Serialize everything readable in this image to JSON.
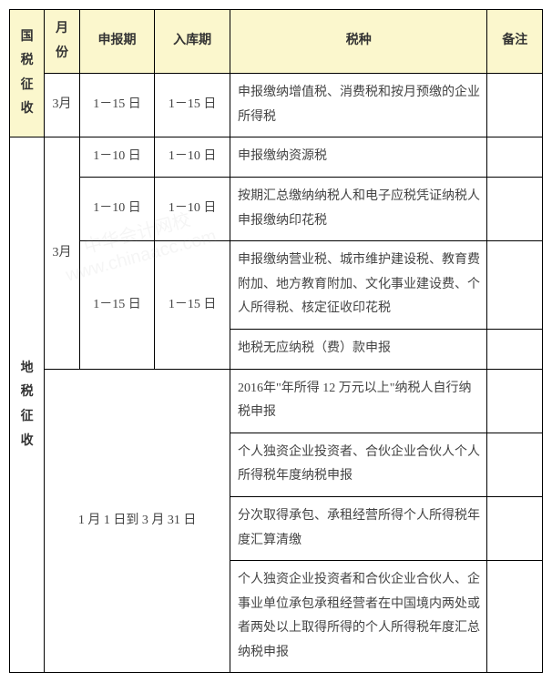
{
  "headers": {
    "month": "月份",
    "declare_period": "申报期",
    "storage_period": "入库期",
    "tax_type": "税种",
    "remark": "备注"
  },
  "categories": {
    "national": "国税征收",
    "local": "地税征收"
  },
  "national_rows": {
    "month": "3月",
    "r1": {
      "declare": "1－15 日",
      "storage": "1－15 日",
      "desc": "申报缴纳增值税、消费税和按月预缴的企业所得税"
    }
  },
  "local_rows": {
    "month": "3月",
    "r1": {
      "declare": "1－10 日",
      "storage": "1－10 日",
      "desc": "申报缴纳资源税"
    },
    "r2": {
      "declare": "1－10 日",
      "storage": "1－10 日",
      "desc": "按期汇总缴纳纳税人和电子应税凭证纳税人申报缴纳印花税"
    },
    "r3": {
      "declare": "1－15 日",
      "storage": "1－15 日",
      "desc": "申报缴纳营业税、城市维护建设税、教育费附加、地方教育附加、文化事业建设费、个人所得税、核定征收印花税"
    },
    "r4": {
      "desc": "地税无应纳税（费）款申报"
    },
    "full_period": "1 月 1 日到 3 月 31 日",
    "r5": {
      "desc": "2016年\"年所得 12 万元以上\"纳税人自行纳税申报"
    },
    "r6": {
      "desc": "个人独资企业投资者、合伙企业合伙人个人所得税年度纳税申报"
    },
    "r7": {
      "desc": "分次取得承包、承租经营所得个人所得税年度汇算清缴"
    },
    "r8": {
      "desc": "个人独资企业投资者和合伙企业合伙人、企事业单位承包承租经营者在中国境内两处或者两处以上取得所得的个人所得税年度汇总纳税申报"
    }
  },
  "watermark": {
    "text1": "中华会计网校",
    "text2": "www.chinaacc.com"
  },
  "style": {
    "header_bg": "#fbf7cd",
    "border_color": "#000000",
    "text_color": "#444444",
    "font_family": "SimSun",
    "font_size": 14
  }
}
